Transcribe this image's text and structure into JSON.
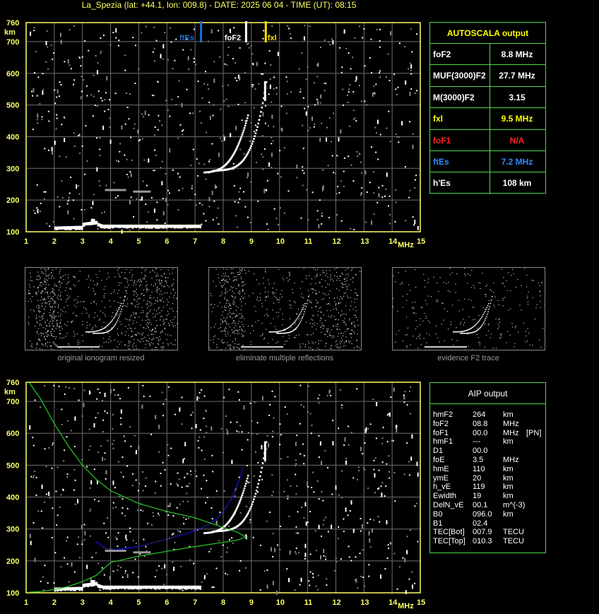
{
  "header": {
    "title": "La_Spezia (lat: +44.1, lon: 009.8) - DATE: 2025 06 04 - TIME (UT): 08:15"
  },
  "chart_data": [
    {
      "type": "scatter",
      "name": "autoscala_ionogram",
      "xlim": [
        1,
        15
      ],
      "ylim": [
        100,
        760
      ],
      "xticks": [
        1,
        2,
        3,
        4,
        5,
        6,
        7,
        8,
        9,
        10,
        11,
        12,
        13,
        14,
        15
      ],
      "yticks": [
        100,
        200,
        300,
        400,
        500,
        600,
        700,
        760
      ],
      "xunit": "MHz",
      "yunit": "km",
      "markers": [
        {
          "label": "ftEs",
          "x": 7.2,
          "color": "#1e6fd9"
        },
        {
          "label": "foF2",
          "x": 8.8,
          "color": "#ffffff"
        },
        {
          "label": "fxl",
          "x": 9.5,
          "color": "#ffe000"
        }
      ]
    },
    {
      "type": "scatter",
      "name": "aip_ionogram",
      "xlim": [
        1,
        15
      ],
      "ylim": [
        100,
        760
      ],
      "xticks": [
        1,
        2,
        3,
        4,
        5,
        6,
        7,
        8,
        9,
        10,
        11,
        12,
        13,
        14,
        15
      ],
      "yticks": [
        100,
        200,
        300,
        400,
        500,
        600,
        700,
        760
      ],
      "xunit": "MHz",
      "yunit": "km",
      "series": [
        {
          "color": "#26c926",
          "style": "profile",
          "x": [
            1.1,
            1.5,
            2.0,
            2.5,
            3.0,
            3.5,
            4.0,
            5.0,
            6.0,
            7.0,
            7.5,
            8.0,
            8.5,
            8.8,
            8.5,
            8.0,
            7.0,
            6.0,
            5.0,
            4.0,
            3.5,
            3.0,
            2.5,
            2.0,
            1.5,
            1.1
          ],
          "y": [
            760,
            710,
            630,
            560,
            500,
            455,
            420,
            380,
            355,
            335,
            320,
            305,
            290,
            275,
            265,
            258,
            245,
            230,
            215,
            195,
            155,
            135,
            120,
            110,
            104,
            102
          ]
        },
        {
          "color": "#2222ff",
          "style": "trace",
          "x": [
            3.5,
            3.8,
            4.2,
            5.0,
            6.0,
            7.0,
            7.5,
            7.8,
            8.0,
            8.3,
            8.6,
            8.7
          ],
          "y": [
            260,
            240,
            235,
            245,
            268,
            295,
            315,
            335,
            355,
            395,
            460,
            490
          ]
        }
      ]
    }
  ],
  "autoscala": {
    "title": "AUTOSCALA output",
    "rows": [
      {
        "key": "foF2",
        "value": "8.8 MHz",
        "kcolor": "#ffffff",
        "vcolor": "#ffffff"
      },
      {
        "key": "MUF(3000)F2",
        "value": "27.7 MHz",
        "kcolor": "#ffffff",
        "vcolor": "#ffffff"
      },
      {
        "key": "M(3000)F2",
        "value": "3.15",
        "kcolor": "#ffffff",
        "vcolor": "#ffffff"
      },
      {
        "key": "fxl",
        "value": "9.5 MHz",
        "kcolor": "#ffff00",
        "vcolor": "#ffff00"
      },
      {
        "key": "foF1",
        "value": "N/A",
        "kcolor": "#ff2020",
        "vcolor": "#ff2020"
      },
      {
        "key": "ftEs",
        "value": "7.2 MHz",
        "kcolor": "#2f8cff",
        "vcolor": "#2f8cff"
      },
      {
        "key": "h'Es",
        "value": "108     km",
        "kcolor": "#ffffff",
        "vcolor": "#ffffff"
      }
    ]
  },
  "aip": {
    "title": "AIP output",
    "rows": [
      {
        "k": "hmF2",
        "v": "264",
        "u": "km",
        "e": ""
      },
      {
        "k": "foF2",
        "v": "08.8",
        "u": "MHz",
        "e": ""
      },
      {
        "k": "foF1",
        "v": "00.0",
        "u": "MHz",
        "e": "[PN]"
      },
      {
        "k": "hmF1",
        "v": "---",
        "u": "km",
        "e": ""
      },
      {
        "k": "D1",
        "v": "00.0",
        "u": "",
        "e": ""
      },
      {
        "k": "foE",
        "v": "3.5",
        "u": "MHz",
        "e": ""
      },
      {
        "k": "hmE",
        "v": "110",
        "u": "km",
        "e": ""
      },
      {
        "k": "ymE",
        "v": "20",
        "u": "km",
        "e": ""
      },
      {
        "k": "h_vE",
        "v": "119",
        "u": "km",
        "e": ""
      },
      {
        "k": "Ewidth",
        "v": "19",
        "u": "km",
        "e": ""
      },
      {
        "k": "DelN_vE",
        "v": "00.1",
        "u": "m^(-3)",
        "e": ""
      },
      {
        "k": "B0",
        "v": "096.0",
        "u": "km",
        "e": ""
      },
      {
        "k": "B1",
        "v": "02.4",
        "u": "",
        "e": ""
      },
      {
        "k": "TEC[Bot]",
        "v": "007.9",
        "u": "TECU",
        "e": ""
      },
      {
        "k": "TEC[Top]",
        "v": "010.3",
        "u": "TECU",
        "e": ""
      }
    ]
  },
  "thumbnails": [
    {
      "caption": "original ionogram resized"
    },
    {
      "caption": "eliminate multiple reflections"
    },
    {
      "caption": "evidence F2 trace"
    }
  ],
  "axis": {
    "km": "km",
    "mhz": "MHz"
  }
}
